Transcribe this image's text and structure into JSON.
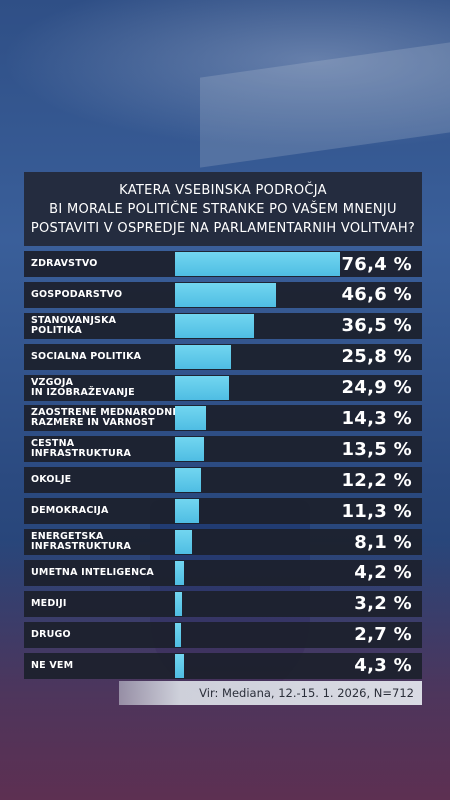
{
  "title": "KATERA VSEBINSKA PODROČJA\nBI MORALE POLITIČNE STRANKE PO VAŠEM MNENJU\nPOSTAVITI V OSPREDJE NA PARLAMENTARNIH VOLITVAH?",
  "source": "Vir: Mediana, 12.-15. 1. 2026, N=712",
  "colors": {
    "bar": "#4fbde3",
    "row_bg": "#1c202c",
    "text": "#ffffff"
  },
  "chart_data": {
    "type": "bar",
    "orientation": "horizontal",
    "categories": [
      "ZDRAVSTVO",
      "GOSPODARSTVO",
      "STANOVANJSKA\nPOLITIKA",
      "SOCIALNA POLITIKA",
      "VZGOJA\nIN IZOBRAŽEVANJE",
      "ZAOSTRENE MEDNARODNE\nRAZMERE IN VARNOST",
      "CESTNA\nINFRASTRUKTURA",
      "OKOLJE",
      "DEMOKRACIJA",
      "ENERGETSKA\nINFRASTRUKTURA",
      "UMETNA INTELIGENCA",
      "MEDIJI",
      "DRUGO",
      "NE VEM"
    ],
    "values": [
      76.4,
      46.6,
      36.5,
      25.8,
      24.9,
      14.3,
      13.5,
      12.2,
      11.3,
      8.1,
      4.2,
      3.2,
      2.7,
      4.3
    ],
    "value_labels": [
      "76,4 %",
      "46,6 %",
      "36,5 %",
      "25,8 %",
      "24,9 %",
      "14,3 %",
      "13,5 %",
      "12,2 %",
      "11,3 %",
      "8,1 %",
      "4,2 %",
      "3,2 %",
      "2,7 %",
      "4,3 %"
    ],
    "xlim": [
      0,
      76.4
    ]
  }
}
